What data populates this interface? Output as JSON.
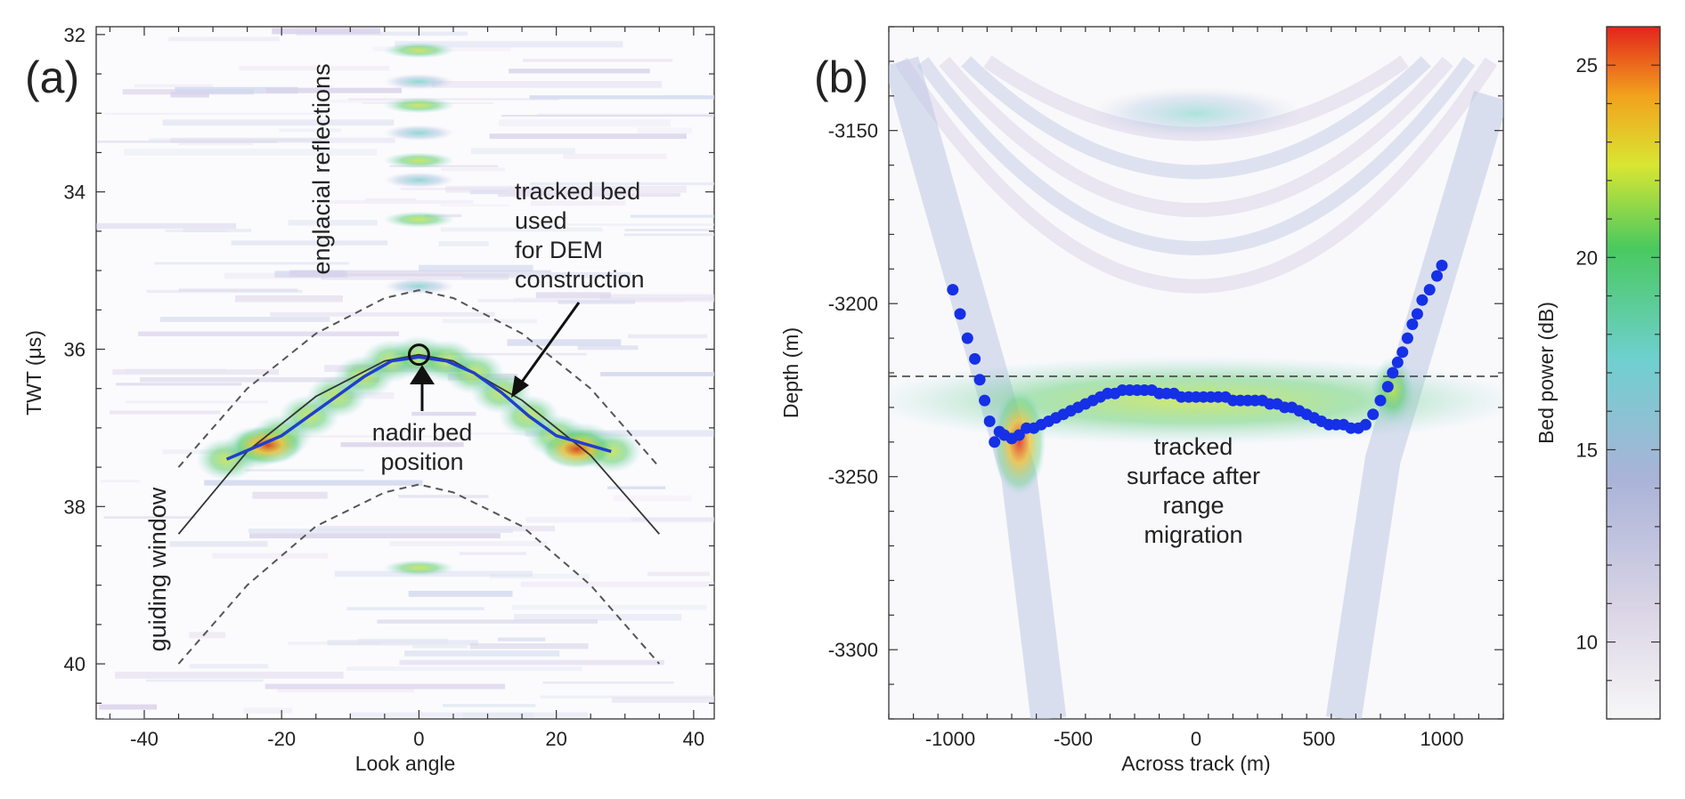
{
  "figure": {
    "panels": [
      {
        "label": "(a)",
        "xlabel": "Look angle",
        "ylabel": "TWT (μs)",
        "xlim": [
          -47,
          43
        ],
        "ylim": [
          40.7,
          31.9
        ],
        "xticks": [
          -40,
          -20,
          0,
          20,
          40
        ],
        "yticks": [
          32,
          34,
          36,
          38,
          40
        ],
        "annotations": {
          "englacial": "englacial reflections",
          "guiding": "guiding window",
          "tracked_bed": [
            "tracked bed",
            "used",
            "for DEM",
            "construction"
          ],
          "nadir": [
            "nadir bed",
            "position"
          ]
        }
      },
      {
        "label": "(b)",
        "xlabel": "Across track (m)",
        "ylabel": "Depth (m)",
        "xlim": [
          -1250,
          1250
        ],
        "ylim": [
          -3320,
          -3120
        ],
        "xticks": [
          -1000,
          -500,
          0,
          500,
          1000
        ],
        "yticks": [
          -3150,
          -3200,
          -3250,
          -3300
        ],
        "dashed_line_depth": -3221,
        "annotation": [
          "tracked",
          "surface after",
          "range",
          "migration"
        ]
      }
    ],
    "colorbar": {
      "label": "Bed power (dB)",
      "range": [
        8,
        26
      ],
      "ticks": [
        10,
        15,
        20,
        25
      ]
    }
  },
  "chart_data": [
    {
      "type": "heatmap",
      "title": "",
      "xlabel": "Look angle",
      "ylabel": "TWT (μs)",
      "series": [
        {
          "name": "",
          "x": [
            -28,
            -24,
            -20,
            -16,
            -12,
            -8,
            -4,
            0,
            4,
            8,
            12,
            16,
            20,
            24,
            28
          ],
          "y": [
            37.4,
            37.25,
            37.1,
            36.85,
            36.6,
            36.35,
            36.15,
            36.1,
            36.15,
            36.3,
            36.55,
            36.85,
            37.1,
            37.2,
            37.3
          ]
        },
        {
          "name": "",
          "x": [
            -35,
            -25,
            -15,
            -5,
            0,
            5,
            15,
            25,
            35
          ],
          "y": [
            38.35,
            37.3,
            36.6,
            36.15,
            36.07,
            36.15,
            36.65,
            37.35,
            38.35
          ]
        },
        {
          "name": "",
          "x": [
            -35,
            -25,
            -15,
            -5,
            0,
            5,
            15,
            25,
            35
          ],
          "y": [
            37.5,
            36.5,
            35.8,
            35.35,
            35.25,
            35.35,
            35.8,
            36.5,
            37.5
          ]
        },
        {
          "name": "",
          "x": [
            -35,
            -25,
            -15,
            -5,
            0,
            5,
            15,
            25,
            35
          ],
          "y": [
            40,
            39,
            38.25,
            37.82,
            37.72,
            37.82,
            38.25,
            39,
            40
          ]
        }
      ],
      "nadir_point": {
        "x": 0,
        "y": 36.07
      }
    },
    {
      "type": "scatter",
      "title": "",
      "xlabel": "Across track (m)",
      "ylabel": "Depth (m)",
      "series": [
        {
          "name": "",
          "x": [
            -990,
            -960,
            -930,
            -900,
            -880,
            -860,
            -840,
            -820,
            -800,
            -780,
            -750,
            -720,
            -690,
            -660,
            -630,
            -600,
            -570,
            -540,
            -510,
            -480,
            -450,
            -420,
            -390,
            -360,
            -330,
            -300,
            -270,
            -240,
            -210,
            -180,
            -150,
            -120,
            -90,
            -60,
            -30,
            0,
            30,
            60,
            90,
            120,
            150,
            180,
            210,
            240,
            270,
            300,
            330,
            360,
            390,
            420,
            450,
            480,
            510,
            540,
            570,
            600,
            630,
            660,
            690,
            720,
            750,
            780,
            800,
            820,
            840,
            860,
            880,
            900,
            920,
            950,
            980,
            1000
          ],
          "y": [
            -3196,
            -3203,
            -3210,
            -3216,
            -3222,
            -3228,
            -3234,
            -3240,
            -3237,
            -3238,
            -3239,
            -3238,
            -3236,
            -3236,
            -3235,
            -3234,
            -3233,
            -3232,
            -3231,
            -3230,
            -3229,
            -3228,
            -3227,
            -3226,
            -3226,
            -3225,
            -3225,
            -3225,
            -3225,
            -3225,
            -3226,
            -3226,
            -3226,
            -3227,
            -3227,
            -3227,
            -3227,
            -3227,
            -3227,
            -3227,
            -3228,
            -3228,
            -3228,
            -3228,
            -3228,
            -3229,
            -3229,
            -3230,
            -3230,
            -3231,
            -3232,
            -3233,
            -3234,
            -3235,
            -3235,
            -3235,
            -3236,
            -3236,
            -3235,
            -3232,
            -3228,
            -3224,
            -3220,
            -3217,
            -3214,
            -3210,
            -3206,
            -3203,
            -3199,
            -3196,
            -3192,
            -3189
          ]
        }
      ]
    }
  ]
}
